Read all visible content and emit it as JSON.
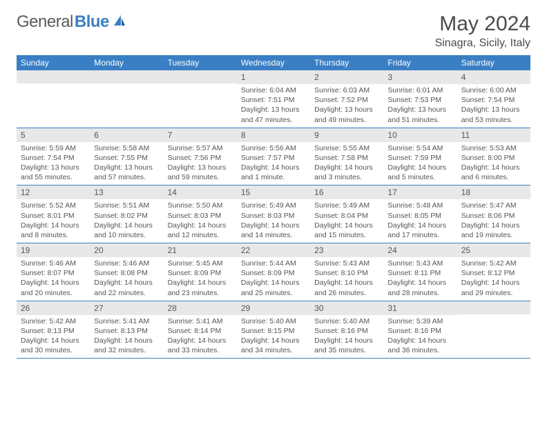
{
  "brand": {
    "part1": "General",
    "part2": "Blue"
  },
  "title": "May 2024",
  "location": "Sinagra, Sicily, Italy",
  "weekdays": [
    "Sunday",
    "Monday",
    "Tuesday",
    "Wednesday",
    "Thursday",
    "Friday",
    "Saturday"
  ],
  "colors": {
    "header_bg": "#3a7fc4",
    "daynum_bg": "#e8e8e8",
    "text": "#555555",
    "border": "#3a7fc4"
  },
  "weeks": [
    [
      {
        "empty": true
      },
      {
        "empty": true
      },
      {
        "empty": true
      },
      {
        "num": "1",
        "sunrise": "Sunrise: 6:04 AM",
        "sunset": "Sunset: 7:51 PM",
        "daylight": "Daylight: 13 hours and 47 minutes."
      },
      {
        "num": "2",
        "sunrise": "Sunrise: 6:03 AM",
        "sunset": "Sunset: 7:52 PM",
        "daylight": "Daylight: 13 hours and 49 minutes."
      },
      {
        "num": "3",
        "sunrise": "Sunrise: 6:01 AM",
        "sunset": "Sunset: 7:53 PM",
        "daylight": "Daylight: 13 hours and 51 minutes."
      },
      {
        "num": "4",
        "sunrise": "Sunrise: 6:00 AM",
        "sunset": "Sunset: 7:54 PM",
        "daylight": "Daylight: 13 hours and 53 minutes."
      }
    ],
    [
      {
        "num": "5",
        "sunrise": "Sunrise: 5:59 AM",
        "sunset": "Sunset: 7:54 PM",
        "daylight": "Daylight: 13 hours and 55 minutes."
      },
      {
        "num": "6",
        "sunrise": "Sunrise: 5:58 AM",
        "sunset": "Sunset: 7:55 PM",
        "daylight": "Daylight: 13 hours and 57 minutes."
      },
      {
        "num": "7",
        "sunrise": "Sunrise: 5:57 AM",
        "sunset": "Sunset: 7:56 PM",
        "daylight": "Daylight: 13 hours and 59 minutes."
      },
      {
        "num": "8",
        "sunrise": "Sunrise: 5:56 AM",
        "sunset": "Sunset: 7:57 PM",
        "daylight": "Daylight: 14 hours and 1 minute."
      },
      {
        "num": "9",
        "sunrise": "Sunrise: 5:55 AM",
        "sunset": "Sunset: 7:58 PM",
        "daylight": "Daylight: 14 hours and 3 minutes."
      },
      {
        "num": "10",
        "sunrise": "Sunrise: 5:54 AM",
        "sunset": "Sunset: 7:59 PM",
        "daylight": "Daylight: 14 hours and 5 minutes."
      },
      {
        "num": "11",
        "sunrise": "Sunrise: 5:53 AM",
        "sunset": "Sunset: 8:00 PM",
        "daylight": "Daylight: 14 hours and 6 minutes."
      }
    ],
    [
      {
        "num": "12",
        "sunrise": "Sunrise: 5:52 AM",
        "sunset": "Sunset: 8:01 PM",
        "daylight": "Daylight: 14 hours and 8 minutes."
      },
      {
        "num": "13",
        "sunrise": "Sunrise: 5:51 AM",
        "sunset": "Sunset: 8:02 PM",
        "daylight": "Daylight: 14 hours and 10 minutes."
      },
      {
        "num": "14",
        "sunrise": "Sunrise: 5:50 AM",
        "sunset": "Sunset: 8:03 PM",
        "daylight": "Daylight: 14 hours and 12 minutes."
      },
      {
        "num": "15",
        "sunrise": "Sunrise: 5:49 AM",
        "sunset": "Sunset: 8:03 PM",
        "daylight": "Daylight: 14 hours and 14 minutes."
      },
      {
        "num": "16",
        "sunrise": "Sunrise: 5:49 AM",
        "sunset": "Sunset: 8:04 PM",
        "daylight": "Daylight: 14 hours and 15 minutes."
      },
      {
        "num": "17",
        "sunrise": "Sunrise: 5:48 AM",
        "sunset": "Sunset: 8:05 PM",
        "daylight": "Daylight: 14 hours and 17 minutes."
      },
      {
        "num": "18",
        "sunrise": "Sunrise: 5:47 AM",
        "sunset": "Sunset: 8:06 PM",
        "daylight": "Daylight: 14 hours and 19 minutes."
      }
    ],
    [
      {
        "num": "19",
        "sunrise": "Sunrise: 5:46 AM",
        "sunset": "Sunset: 8:07 PM",
        "daylight": "Daylight: 14 hours and 20 minutes."
      },
      {
        "num": "20",
        "sunrise": "Sunrise: 5:46 AM",
        "sunset": "Sunset: 8:08 PM",
        "daylight": "Daylight: 14 hours and 22 minutes."
      },
      {
        "num": "21",
        "sunrise": "Sunrise: 5:45 AM",
        "sunset": "Sunset: 8:09 PM",
        "daylight": "Daylight: 14 hours and 23 minutes."
      },
      {
        "num": "22",
        "sunrise": "Sunrise: 5:44 AM",
        "sunset": "Sunset: 8:09 PM",
        "daylight": "Daylight: 14 hours and 25 minutes."
      },
      {
        "num": "23",
        "sunrise": "Sunrise: 5:43 AM",
        "sunset": "Sunset: 8:10 PM",
        "daylight": "Daylight: 14 hours and 26 minutes."
      },
      {
        "num": "24",
        "sunrise": "Sunrise: 5:43 AM",
        "sunset": "Sunset: 8:11 PM",
        "daylight": "Daylight: 14 hours and 28 minutes."
      },
      {
        "num": "25",
        "sunrise": "Sunrise: 5:42 AM",
        "sunset": "Sunset: 8:12 PM",
        "daylight": "Daylight: 14 hours and 29 minutes."
      }
    ],
    [
      {
        "num": "26",
        "sunrise": "Sunrise: 5:42 AM",
        "sunset": "Sunset: 8:13 PM",
        "daylight": "Daylight: 14 hours and 30 minutes."
      },
      {
        "num": "27",
        "sunrise": "Sunrise: 5:41 AM",
        "sunset": "Sunset: 8:13 PM",
        "daylight": "Daylight: 14 hours and 32 minutes."
      },
      {
        "num": "28",
        "sunrise": "Sunrise: 5:41 AM",
        "sunset": "Sunset: 8:14 PM",
        "daylight": "Daylight: 14 hours and 33 minutes."
      },
      {
        "num": "29",
        "sunrise": "Sunrise: 5:40 AM",
        "sunset": "Sunset: 8:15 PM",
        "daylight": "Daylight: 14 hours and 34 minutes."
      },
      {
        "num": "30",
        "sunrise": "Sunrise: 5:40 AM",
        "sunset": "Sunset: 8:16 PM",
        "daylight": "Daylight: 14 hours and 35 minutes."
      },
      {
        "num": "31",
        "sunrise": "Sunrise: 5:39 AM",
        "sunset": "Sunset: 8:16 PM",
        "daylight": "Daylight: 14 hours and 36 minutes."
      },
      {
        "empty": true
      }
    ]
  ]
}
